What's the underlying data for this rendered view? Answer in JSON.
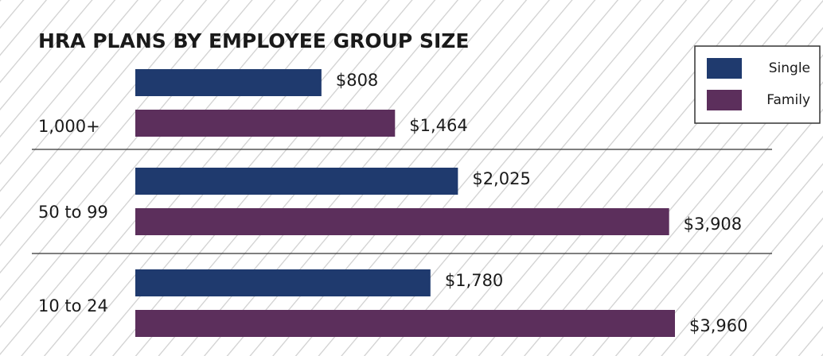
{
  "chart_data": {
    "type": "bar",
    "orientation": "horizontal",
    "title": "HRA PLANS BY EMPLOYEE GROUP SIZE",
    "categories": [
      "1,000+",
      "50 to 99",
      "10 to 24"
    ],
    "series": [
      {
        "name": "Single",
        "color": "#1f3a6e",
        "values": [
          808,
          2025,
          1780
        ],
        "value_labels": [
          "$808",
          "$2,025",
          "$1,780"
        ]
      },
      {
        "name": "Family",
        "color": "#5c2f5c",
        "values": [
          1464,
          3908,
          3960
        ],
        "value_labels": [
          "$1,464",
          "$3,908",
          "$3,960"
        ]
      }
    ],
    "legend": "top-right"
  }
}
